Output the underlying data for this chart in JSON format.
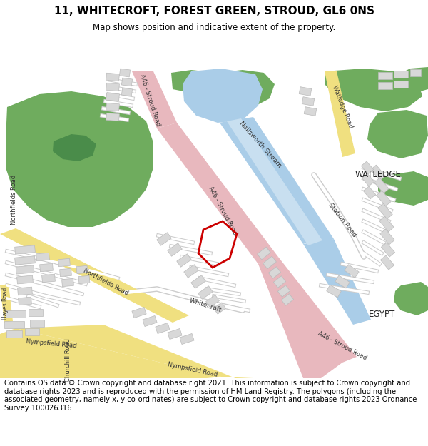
{
  "title": "11, WHITECROFT, FOREST GREEN, STROUD, GL6 0NS",
  "subtitle": "Map shows position and indicative extent of the property.",
  "footer": "Contains OS data © Crown copyright and database right 2021. This information is subject to Crown copyright and database rights 2023 and is reproduced with the permission of HM Land Registry. The polygons (including the associated geometry, namely x, y co-ordinates) are subject to Crown copyright and database rights 2023 Ordnance Survey 100026316.",
  "bg_color": "#ffffff",
  "map_bg": "#ffffff",
  "green": "#6fac5e",
  "blue": "#aacde8",
  "pink": "#e8b8be",
  "yellow": "#f0e080",
  "gray_road": "#dddddd",
  "building": "#d8d8d8",
  "building_edge": "#bbbbbb",
  "red_polygon": "#cc0000"
}
